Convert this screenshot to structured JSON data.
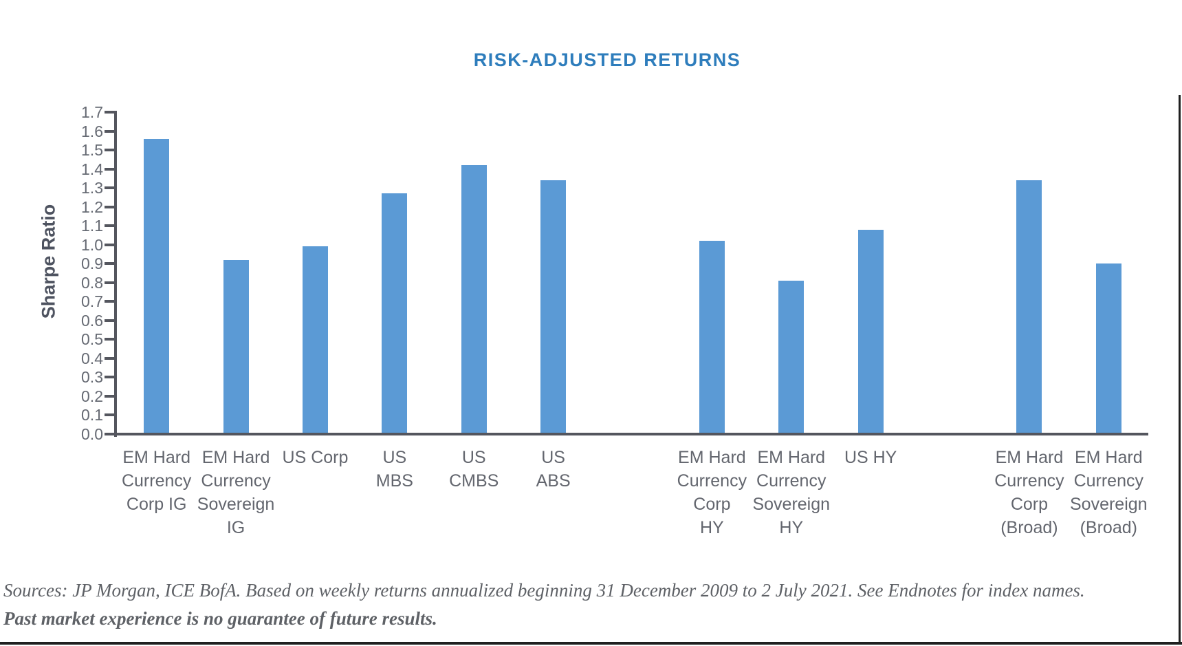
{
  "title": "RISK-ADJUSTED RETURNS",
  "y_axis": {
    "label": "Sharpe Ratio",
    "tick_labels": [
      "0.0",
      "0.1",
      "0.2",
      "0.3",
      "0.4",
      "0.5",
      "0.6",
      "0.7",
      "0.8",
      "0.9",
      "1.0",
      "1.1",
      "1.2",
      "1.3",
      "1.4",
      "1.5",
      "1.6",
      "1.7"
    ]
  },
  "chart_data": {
    "type": "bar",
    "title": "RISK-ADJUSTED RETURNS",
    "xlabel": "",
    "ylabel": "Sharpe Ratio",
    "ylim": [
      0.0,
      1.7
    ],
    "ytick_step": 0.1,
    "grid": false,
    "legend": "none",
    "categories": [
      "EM Hard Currency Corp IG",
      "EM Hard Currency Sovereign IG",
      "US Corp",
      "US MBS",
      "US CMBS",
      "US ABS",
      "EM Hard Currency Corp HY",
      "EM Hard Currency Sovereign HY",
      "US HY",
      "EM Hard Currency Corp (Broad)",
      "EM Hard Currency Sovereign (Broad)"
    ],
    "values": [
      1.56,
      0.92,
      0.99,
      1.27,
      1.42,
      1.34,
      1.02,
      0.81,
      1.08,
      1.34,
      0.9
    ],
    "bars": [
      {
        "label": "EM Hard Currency Corp IG",
        "label_lines": [
          "EM Hard",
          "Currency",
          "Corp IG"
        ],
        "value": 1.56,
        "slot": 0
      },
      {
        "label": "EM Hard Currency Sovereign IG",
        "label_lines": [
          "EM Hard",
          "Currency",
          "Sovereign",
          "IG"
        ],
        "value": 0.92,
        "slot": 1
      },
      {
        "label": "US Corp",
        "label_lines": [
          "US Corp"
        ],
        "value": 0.99,
        "slot": 2
      },
      {
        "label": "US MBS",
        "label_lines": [
          "US",
          "MBS"
        ],
        "value": 1.27,
        "slot": 3
      },
      {
        "label": "US CMBS",
        "label_lines": [
          "US",
          "CMBS"
        ],
        "value": 1.42,
        "slot": 4
      },
      {
        "label": "US ABS",
        "label_lines": [
          "US",
          "ABS"
        ],
        "value": 1.34,
        "slot": 5
      },
      {
        "label": "EM Hard Currency Corp HY",
        "label_lines": [
          "EM Hard",
          "Currency",
          "Corp",
          "HY"
        ],
        "value": 1.02,
        "slot": 7
      },
      {
        "label": "EM Hard Currency Sovereign HY",
        "label_lines": [
          "EM Hard",
          "Currency",
          "Sovereign",
          "HY"
        ],
        "value": 0.81,
        "slot": 8
      },
      {
        "label": "US HY",
        "label_lines": [
          "US HY"
        ],
        "value": 1.08,
        "slot": 9
      },
      {
        "label": "EM Hard Currency Corp (Broad)",
        "label_lines": [
          "EM Hard",
          "Currency",
          "Corp",
          "(Broad)"
        ],
        "value": 1.34,
        "slot": 11
      },
      {
        "label": "EM Hard Currency Sovereign (Broad)",
        "label_lines": [
          "EM Hard",
          "Currency",
          "Sovereign",
          "(Broad)"
        ],
        "value": 0.9,
        "slot": 12
      }
    ]
  },
  "footer": {
    "line1": "Sources: JP Morgan, ICE BofA. Based on weekly returns annualized beginning 31 December 2009 to 2 July 2021. See Endnotes for index names.",
    "line2": "Past market experience is no guarantee of future results."
  },
  "colors": {
    "bar": "#5B9AD5",
    "title": "#2E7DBC",
    "axis": "#54565E",
    "tick_label": "#666A73",
    "x_label": "#63666E",
    "y_axis_title": "#4E5360",
    "footer_text": "#5E6166",
    "border": "#1F1F1F"
  }
}
